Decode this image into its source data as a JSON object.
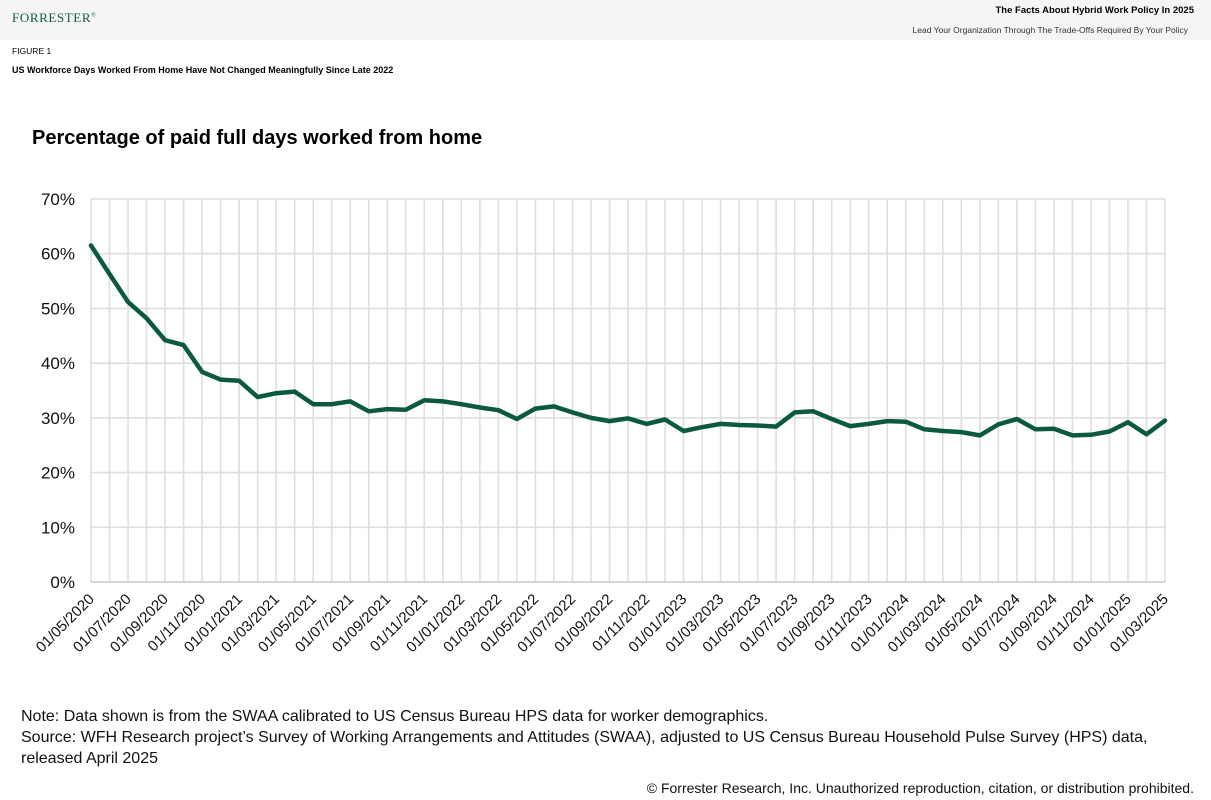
{
  "header": {
    "logo_text": "FORRESTER",
    "logo_reg": "®",
    "title": "The Facts About Hybrid Work Policy In 2025",
    "subtitle": "Lead Your Organization Through The Trade-Offs Required By Your Policy"
  },
  "figure": {
    "label": "FIGURE 1",
    "title": "US Workforce Days Worked From Home Have Not Changed Meaningfully Since Late 2022"
  },
  "colors": {
    "line": "#0b5a3e",
    "grid": "#dedede",
    "axis": "#c8c8c8"
  },
  "chart_data": {
    "type": "line",
    "title": "Percentage of paid full days worked from home",
    "xlabel": "",
    "ylabel": "",
    "ylim": [
      0,
      70
    ],
    "yticks": [
      "0%",
      "10%",
      "20%",
      "30%",
      "40%",
      "50%",
      "60%",
      "70%"
    ],
    "ytick_values": [
      0,
      10,
      20,
      30,
      40,
      50,
      60,
      70
    ],
    "grid": true,
    "xtick_labels": [
      "01/05/2020",
      "01/07/2020",
      "01/09/2020",
      "01/11/2020",
      "01/01/2021",
      "01/03/2021",
      "01/05/2021",
      "01/07/2021",
      "01/09/2021",
      "01/11/2021",
      "01/01/2022",
      "01/03/2022",
      "01/05/2022",
      "01/07/2022",
      "01/09/2022",
      "01/11/2022",
      "01/01/2023",
      "01/03/2023",
      "01/05/2023",
      "01/07/2023",
      "01/09/2023",
      "01/11/2023",
      "01/01/2024",
      "01/03/2024",
      "01/05/2024",
      "01/07/2024",
      "01/09/2024",
      "01/11/2024",
      "01/01/2025",
      "01/03/2025"
    ],
    "series": [
      {
        "name": "Percentage of paid full days worked from home",
        "values": [
          61.5,
          56.3,
          51.2,
          48.2,
          44.2,
          43.3,
          38.4,
          37.0,
          36.8,
          33.8,
          34.5,
          34.8,
          32.5,
          32.5,
          33.0,
          31.2,
          31.6,
          31.5,
          33.2,
          33.0,
          32.5,
          31.9,
          31.4,
          29.8,
          31.7,
          32.1,
          31.0,
          30.0,
          29.4,
          29.9,
          28.9,
          29.7,
          27.6,
          28.3,
          28.9,
          28.7,
          28.6,
          28.4,
          31.0,
          31.2,
          29.8,
          28.5,
          28.9,
          29.4,
          29.3,
          27.9,
          27.6,
          27.4,
          26.8,
          28.8,
          29.8,
          27.9,
          28.0,
          26.8,
          26.9,
          27.5,
          29.2,
          27.0,
          29.5
        ]
      }
    ]
  },
  "notes": {
    "note": "Note: Data shown is from the SWAA calibrated to US Census Bureau HPS data for worker demographics.",
    "source": "Source: WFH Research project’s Survey of Working Arrangements and Attitudes (SWAA), adjusted to US Census Bureau Household Pulse Survey (HPS) data, released April 2025"
  },
  "footer": {
    "copyright": "© Forrester Research, Inc. Unauthorized reproduction, citation, or distribution prohibited."
  }
}
